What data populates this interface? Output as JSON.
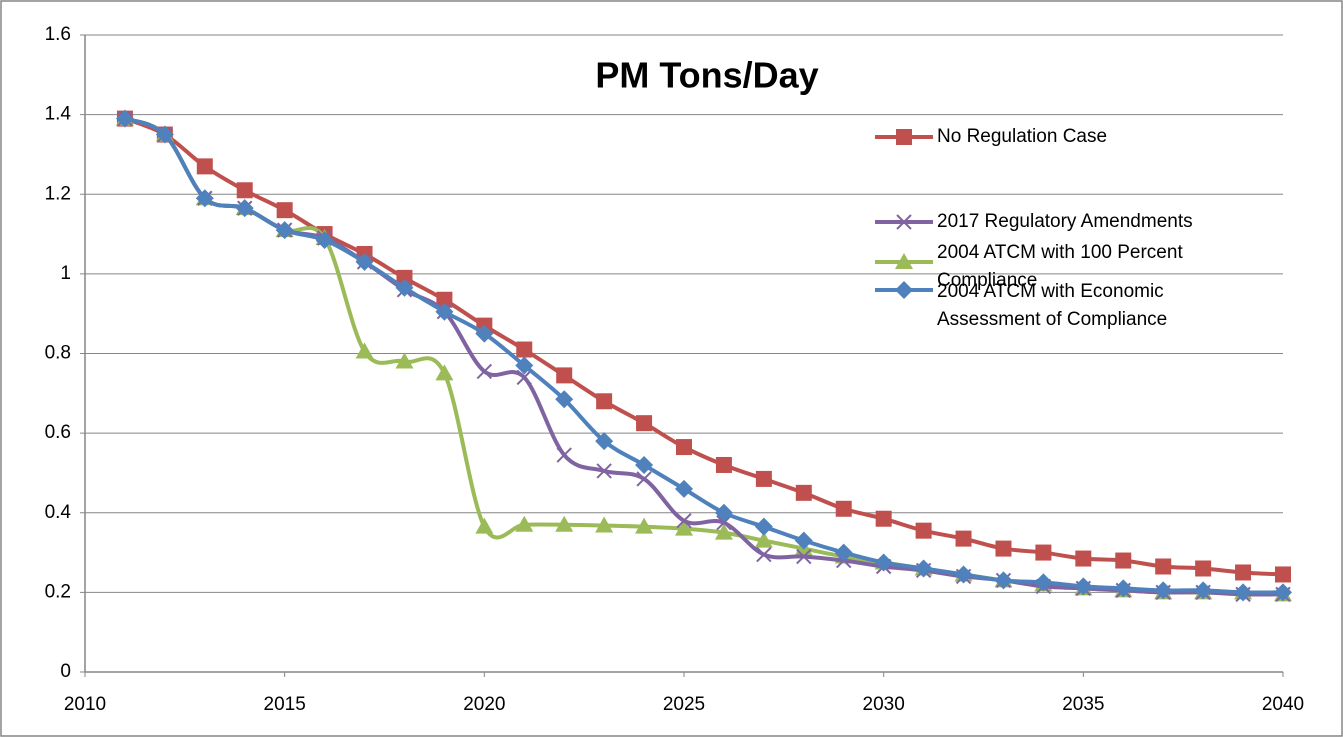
{
  "chart_data": {
    "type": "line",
    "title": "PM Tons/Day",
    "x": [
      2011,
      2012,
      2013,
      2014,
      2015,
      2016,
      2017,
      2018,
      2019,
      2020,
      2021,
      2022,
      2023,
      2024,
      2025,
      2026,
      2027,
      2028,
      2029,
      2030,
      2031,
      2032,
      2033,
      2034,
      2035,
      2036,
      2037,
      2038,
      2039,
      2040
    ],
    "xlim": [
      2010,
      2040
    ],
    "xticks": [
      2010,
      2015,
      2020,
      2025,
      2030,
      2035,
      2040
    ],
    "ylim": [
      0,
      1.6
    ],
    "yticks": [
      0,
      0.2,
      0.4,
      0.6,
      0.8,
      1,
      1.2,
      1.4,
      1.6
    ],
    "grid": true,
    "smooth": true,
    "series": [
      {
        "name": "No Regulation Case",
        "color": "#c0504d",
        "marker": "square",
        "values": [
          1.39,
          1.35,
          1.27,
          1.21,
          1.16,
          1.1,
          1.05,
          0.99,
          0.935,
          0.87,
          0.81,
          0.745,
          0.68,
          0.625,
          0.565,
          0.52,
          0.485,
          0.45,
          0.41,
          0.385,
          0.355,
          0.335,
          0.31,
          0.3,
          0.285,
          0.28,
          0.265,
          0.26,
          0.25,
          0.245
        ]
      },
      {
        "name": "2004 ATCM with 100 Percent Compliance",
        "color": "#9bbb59",
        "marker": "triangle",
        "values": [
          1.39,
          1.35,
          1.19,
          1.165,
          1.11,
          1.09,
          0.805,
          0.78,
          0.75,
          0.365,
          0.37,
          0.37,
          0.368,
          0.365,
          0.36,
          0.35,
          0.33,
          0.31,
          0.29,
          0.275,
          0.26,
          0.245,
          0.23,
          0.22,
          0.21,
          0.205,
          0.2,
          0.2,
          0.2,
          0.195
        ]
      },
      {
        "name": "2017 Regulatory Amendments",
        "color": "#8064a2",
        "marker": "x",
        "values": [
          1.39,
          1.35,
          1.19,
          1.165,
          1.11,
          1.09,
          1.03,
          0.96,
          0.905,
          0.755,
          0.74,
          0.545,
          0.505,
          0.485,
          0.38,
          0.375,
          0.295,
          0.29,
          0.28,
          0.265,
          0.255,
          0.24,
          0.23,
          0.215,
          0.21,
          0.205,
          0.2,
          0.2,
          0.195,
          0.195
        ]
      },
      {
        "name": "2004 ATCM with Economic Assessment of Compliance",
        "color": "#4f81bd",
        "marker": "diamond",
        "values": [
          1.39,
          1.35,
          1.19,
          1.165,
          1.11,
          1.085,
          1.03,
          0.965,
          0.905,
          0.85,
          0.77,
          0.685,
          0.58,
          0.52,
          0.46,
          0.4,
          0.365,
          0.33,
          0.3,
          0.275,
          0.26,
          0.245,
          0.23,
          0.225,
          0.215,
          0.21,
          0.205,
          0.205,
          0.2,
          0.2
        ]
      }
    ]
  }
}
